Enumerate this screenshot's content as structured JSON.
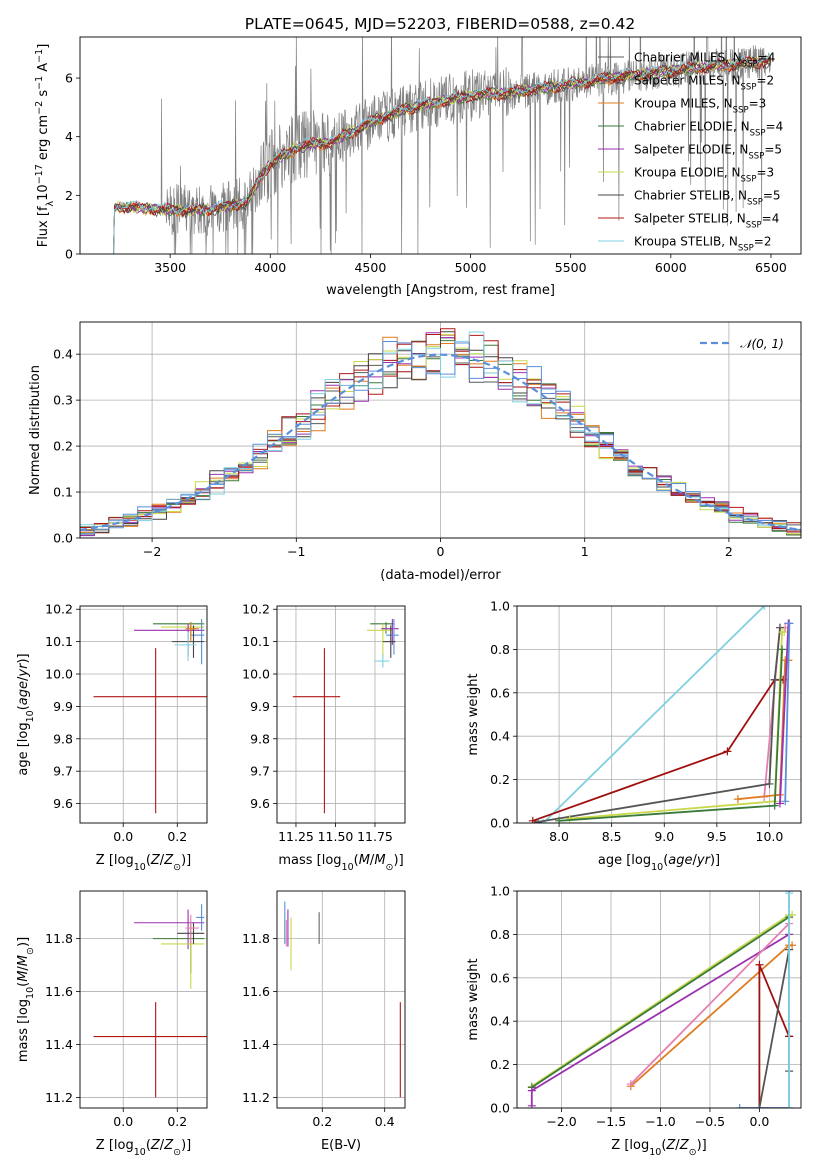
{
  "figure": {
    "title": "PLATE=0645, MJD=52203, FIBERID=0588, z=0.42"
  },
  "chart_data": [
    {
      "id": "spectrum",
      "type": "line",
      "xlabel": "wavelength [Angstrom, rest frame]",
      "ylabel": "Flux [f$_\\lambda$ 10$^{-17}$ erg cm$^{-2}$ s$^{-1}$ A$^{-1}$]",
      "xlim": [
        3050,
        6650
      ],
      "ylim": [
        0,
        7.4
      ],
      "xticks": [
        3500,
        4000,
        4500,
        5000,
        5500,
        6000,
        6500
      ],
      "yticks": [
        0,
        2,
        4,
        6
      ],
      "data_color": "#808080",
      "legend": [
        {
          "label": "Chabrier MILES, N_SSP=4",
          "color": "#5a5a5a"
        },
        {
          "label": "Salpeter MILES, N_SSP=2",
          "color": "#a01010"
        },
        {
          "label": "Kroupa MILES, N_SSP=3",
          "color": "#e07b1f"
        },
        {
          "label": "Chabrier ELODIE, N_SSP=4",
          "color": "#3a7a3a"
        },
        {
          "label": "Salpeter ELODIE, N_SSP=5",
          "color": "#9b30b0"
        },
        {
          "label": "Kroupa ELODIE, N_SSP=3",
          "color": "#c8d84a"
        },
        {
          "label": "Chabrier STELIB, N_SSP=5",
          "color": "#444444"
        },
        {
          "label": "Salpeter STELIB, N_SSP=4",
          "color": "#b01818"
        },
        {
          "label": "Kroupa STELIB, N_SSP=2",
          "color": "#7fd0e0"
        }
      ],
      "continuum_knots": [
        [
          3200,
          0
        ],
        [
          3220,
          1.6
        ],
        [
          3300,
          1.6
        ],
        [
          3400,
          1.55
        ],
        [
          3500,
          1.5
        ],
        [
          3700,
          1.5
        ],
        [
          3880,
          1.75
        ],
        [
          3950,
          2.6
        ],
        [
          4000,
          3.1
        ],
        [
          4150,
          3.7
        ],
        [
          4300,
          3.8
        ],
        [
          4500,
          4.5
        ],
        [
          4700,
          5.0
        ],
        [
          5000,
          5.4
        ],
        [
          5200,
          5.5
        ],
        [
          5500,
          5.8
        ],
        [
          5800,
          6.1
        ],
        [
          6000,
          6.25
        ],
        [
          6500,
          6.6
        ]
      ]
    },
    {
      "id": "residuals",
      "type": "histogram",
      "xlabel": "(data-model)/error",
      "ylabel": "Normed distribution",
      "xlim": [
        -2.5,
        2.5
      ],
      "ylim": [
        0,
        0.47
      ],
      "xticks": [
        -2,
        -1,
        0,
        1,
        2
      ],
      "yticks": [
        0.0,
        0.1,
        0.2,
        0.3,
        0.4
      ],
      "legend": "$\\mathcal{N}(0,1)$",
      "gaussian_color": "#5b8fd9",
      "bin_width": 0.1
    },
    {
      "id": "age-vs-z",
      "type": "scatter",
      "xlabel": "Z [log10(Z/Z⊙)]",
      "ylabel": "age [log10(age/yr)]",
      "xlim": [
        -0.16,
        0.31
      ],
      "ylim": [
        9.54,
        10.21
      ],
      "xticks": [
        0.0,
        0.2
      ],
      "yticks": [
        9.6,
        9.7,
        9.8,
        9.9,
        10.0,
        10.1,
        10.2
      ],
      "points": [
        {
          "x": 0.12,
          "xerr": [
            0.23,
            0.31
          ],
          "y": 9.93,
          "yerr": [
            0.36,
            0.15
          ],
          "color": "#b01818"
        },
        {
          "x": 0.25,
          "xerr": [
            0.14,
            0.05
          ],
          "y": 10.155,
          "yerr": [
            0.03,
            0.005
          ],
          "color": "#3a7a3a"
        },
        {
          "x": 0.25,
          "xerr": [
            0.11,
            0.05
          ],
          "y": 10.145,
          "yerr": [
            0.04,
            0.01
          ],
          "color": "#c8d84a"
        },
        {
          "x": 0.24,
          "xerr": [
            0.2,
            0.06
          ],
          "y": 10.135,
          "yerr": [
            0.08,
            0.02
          ],
          "color": "#9b30b0"
        },
        {
          "x": 0.29,
          "xerr": [
            0.04,
            0.01
          ],
          "y": 10.12,
          "yerr": [
            0.09,
            0.05
          ],
          "color": "#5b8fd9"
        },
        {
          "x": 0.26,
          "xerr": [
            0.08,
            0.04
          ],
          "y": 10.1,
          "yerr": [
            0.05,
            0.05
          ],
          "color": "#444444"
        },
        {
          "x": 0.24,
          "xerr": [
            0.05,
            0.03
          ],
          "y": 10.09,
          "yerr": [
            0.05,
            0.04
          ],
          "color": "#7fd0e0"
        },
        {
          "x": 0.25,
          "xerr": [
            0.02,
            0.03
          ],
          "y": 10.14,
          "yerr": [
            0.04,
            0.02
          ],
          "color": "#e07b1f"
        }
      ]
    },
    {
      "id": "age-vs-mass",
      "type": "scatter",
      "xlabel": "mass [log10(M/M⊙)]",
      "ylabel": "",
      "xlim": [
        11.13,
        11.94
      ],
      "ylim": [
        9.54,
        10.21
      ],
      "xticks": [
        11.25,
        11.5,
        11.75
      ],
      "yticks": [
        9.6,
        9.7,
        9.8,
        9.9,
        10.0,
        10.1,
        10.2
      ],
      "xtick_labels": [
        "11.25",
        "11.50",
        "11.75"
      ],
      "points": [
        {
          "x": 11.43,
          "xerr": [
            0.2,
            0.1
          ],
          "y": 9.93,
          "yerr": [
            0.36,
            0.15
          ],
          "color": "#b01818"
        },
        {
          "x": 11.82,
          "xerr": [
            0.1,
            0.05
          ],
          "y": 10.155,
          "yerr": [
            0.03,
            0.005
          ],
          "color": "#3a7a3a"
        },
        {
          "x": 11.8,
          "xerr": [
            0.1,
            0.06
          ],
          "y": 10.135,
          "yerr": [
            0.08,
            0.02
          ],
          "color": "#c8d84a"
        },
        {
          "x": 11.86,
          "xerr": [
            0.07,
            0.04
          ],
          "y": 10.14,
          "yerr": [
            0.05,
            0.03
          ],
          "color": "#9b30b0"
        },
        {
          "x": 11.87,
          "xerr": [
            0.05,
            0.03
          ],
          "y": 10.12,
          "yerr": [
            0.06,
            0.05
          ],
          "color": "#5b8fd9"
        },
        {
          "x": 11.85,
          "xerr": [
            0.05,
            0.03
          ],
          "y": 10.1,
          "yerr": [
            0.05,
            0.05
          ],
          "color": "#444444"
        },
        {
          "x": 11.8,
          "xerr": [
            0.05,
            0.04
          ],
          "y": 10.04,
          "yerr": [
            0.02,
            0.02
          ],
          "color": "#7fd0e0"
        }
      ]
    },
    {
      "id": "weight-vs-age",
      "type": "line",
      "xlabel": "age [log10(age/yr)]",
      "ylabel": "mass weight",
      "xlim": [
        7.6,
        10.3
      ],
      "ylim": [
        0,
        1
      ],
      "xticks": [
        8.0,
        8.5,
        9.0,
        9.5,
        10.0
      ],
      "yticks": [
        0.0,
        0.2,
        0.4,
        0.6,
        0.8,
        1.0
      ],
      "series": [
        {
          "color": "#7fd0e0",
          "x": [
            7.85,
            9.95
          ],
          "y": [
            0.0,
            1.0
          ]
        },
        {
          "color": "#a01010",
          "x": [
            7.75,
            9.6,
            10.05,
            10.13
          ],
          "y": [
            0.01,
            0.33,
            0.66,
            0.66
          ]
        },
        {
          "color": "#e680b0",
          "x": [
            9.95,
            10.1,
            10.15
          ],
          "y": [
            0.12,
            0.9,
            0.9
          ]
        },
        {
          "color": "#555555",
          "x": [
            7.8,
            10.0,
            10.05,
            10.1
          ],
          "y": [
            0.005,
            0.18,
            0.66,
            0.9
          ]
        },
        {
          "color": "#e07b1f",
          "x": [
            9.7,
            10.1,
            10.15,
            10.18
          ],
          "y": [
            0.11,
            0.13,
            0.75,
            0.75
          ]
        },
        {
          "color": "#c8d84a",
          "x": [
            8.1,
            10.05,
            10.12,
            10.14
          ],
          "y": [
            0.02,
            0.1,
            0.88,
            0.88
          ]
        },
        {
          "color": "#9b30b0",
          "x": [
            10.1,
            10.18
          ],
          "y": [
            0.09,
            0.92
          ]
        },
        {
          "color": "#5b8fd9",
          "x": [
            10.15,
            10.19
          ],
          "y": [
            0.1,
            0.92
          ]
        },
        {
          "color": "#3a7a3a",
          "x": [
            8.0,
            10.05,
            10.12
          ],
          "y": [
            0.01,
            0.08,
            0.8
          ]
        }
      ]
    },
    {
      "id": "mass-vs-z",
      "type": "scatter",
      "xlabel": "Z [log10(Z/Z⊙)]",
      "ylabel": "mass [log10(M/M⊙)]",
      "xlim": [
        -0.16,
        0.31
      ],
      "ylim": [
        11.16,
        11.98
      ],
      "xticks": [
        0.0,
        0.2
      ],
      "yticks": [
        11.2,
        11.4,
        11.6,
        11.8
      ],
      "points": [
        {
          "x": 0.12,
          "xerr": [
            0.23,
            0.31
          ],
          "y": 11.43,
          "yerr": [
            0.23,
            0.13
          ],
          "color": "#b01818"
        },
        {
          "x": 0.25,
          "xerr": [
            0.14,
            0.05
          ],
          "y": 11.8,
          "yerr": [
            0.13,
            0.06
          ],
          "color": "#3a7a3a"
        },
        {
          "x": 0.24,
          "xerr": [
            0.2,
            0.06
          ],
          "y": 11.86,
          "yerr": [
            0.1,
            0.05
          ],
          "color": "#9b30b0"
        },
        {
          "x": 0.25,
          "xerr": [
            0.11,
            0.05
          ],
          "y": 11.78,
          "yerr": [
            0.17,
            0.08
          ],
          "color": "#c8d84a"
        },
        {
          "x": 0.29,
          "xerr": [
            0.02,
            0.01
          ],
          "y": 11.88,
          "yerr": [
            0.05,
            0.05
          ],
          "color": "#5b8fd9"
        },
        {
          "x": 0.26,
          "xerr": [
            0.06,
            0.04
          ],
          "y": 11.82,
          "yerr": [
            0.04,
            0.04
          ],
          "color": "#444444"
        },
        {
          "x": 0.25,
          "xerr": [
            0.02,
            0.03
          ],
          "y": 11.84,
          "yerr": [
            0.06,
            0.05
          ],
          "color": "#e680b0"
        }
      ]
    },
    {
      "id": "mass-vs-ebv",
      "type": "scatter",
      "xlabel": "E(B-V)",
      "ylabel": "",
      "xlim": [
        0.055,
        0.465
      ],
      "ylim": [
        11.16,
        11.98
      ],
      "xticks": [
        0.2,
        0.4
      ],
      "yticks": [
        11.2,
        11.4,
        11.6,
        11.8
      ],
      "points": [
        {
          "x": 0.45,
          "y": 11.38,
          "yerr": [
            0.18,
            0.18
          ],
          "color": "#b01818"
        },
        {
          "x": 0.19,
          "y": 11.84,
          "yerr": [
            0.06,
            0.06
          ],
          "color": "#666666"
        },
        {
          "x": 0.08,
          "y": 11.86,
          "yerr": [
            0.08,
            0.08
          ],
          "color": "#5b8fd9"
        },
        {
          "x": 0.09,
          "y": 11.84,
          "yerr": [
            0.07,
            0.07
          ],
          "color": "#9b30b0"
        },
        {
          "x": 0.1,
          "y": 11.78,
          "yerr": [
            0.1,
            0.1
          ],
          "color": "#c8d84a"
        },
        {
          "x": 0.085,
          "y": 11.82,
          "yerr": [
            0.05,
            0.05
          ],
          "color": "#e680b0"
        }
      ]
    },
    {
      "id": "weight-vs-z",
      "type": "line",
      "xlabel": "Z [log10(Z/Z⊙)]",
      "ylabel": "mass weight",
      "xlim": [
        -2.45,
        0.42
      ],
      "ylim": [
        0,
        1
      ],
      "xticks": [
        -2.0,
        -1.5,
        -1.0,
        -0.5,
        0.0
      ],
      "yticks": [
        0.0,
        0.2,
        0.4,
        0.6,
        0.8,
        1.0
      ],
      "series": [
        {
          "color": "#c8d84a",
          "x": [
            -2.3,
            0.3,
            0.33
          ],
          "y": [
            0.1,
            0.89,
            0.89
          ]
        },
        {
          "color": "#3a7a3a",
          "x": [
            -2.3,
            0.3
          ],
          "y": [
            0.095,
            0.88
          ]
        },
        {
          "color": "#9b30b0",
          "x": [
            -2.3,
            -2.3,
            0.3
          ],
          "y": [
            0.01,
            0.08,
            0.8
          ]
        },
        {
          "color": "#e07b1f",
          "x": [
            -1.3,
            0.3,
            0.33
          ],
          "y": [
            0.1,
            0.75,
            0.75
          ]
        },
        {
          "color": "#e680b0",
          "x": [
            -1.3,
            0.3
          ],
          "y": [
            0.11,
            0.85
          ]
        },
        {
          "color": "#a01010",
          "x": [
            0.0,
            0.0,
            0.3,
            0.3
          ],
          "y": [
            0.0,
            0.66,
            0.33,
            0.33
          ]
        },
        {
          "color": "#555555",
          "x": [
            0.0,
            0.3,
            0.3
          ],
          "y": [
            0.0,
            0.73,
            0.17
          ]
        },
        {
          "color": "#5b8fd9",
          "x": [
            -0.2,
            0.3,
            0.3
          ],
          "y": [
            0.0,
            0.0,
            1.0
          ]
        },
        {
          "color": "#7fd0e0",
          "x": [
            0.3,
            0.3
          ],
          "y": [
            0.0,
            0.99
          ]
        }
      ]
    }
  ]
}
